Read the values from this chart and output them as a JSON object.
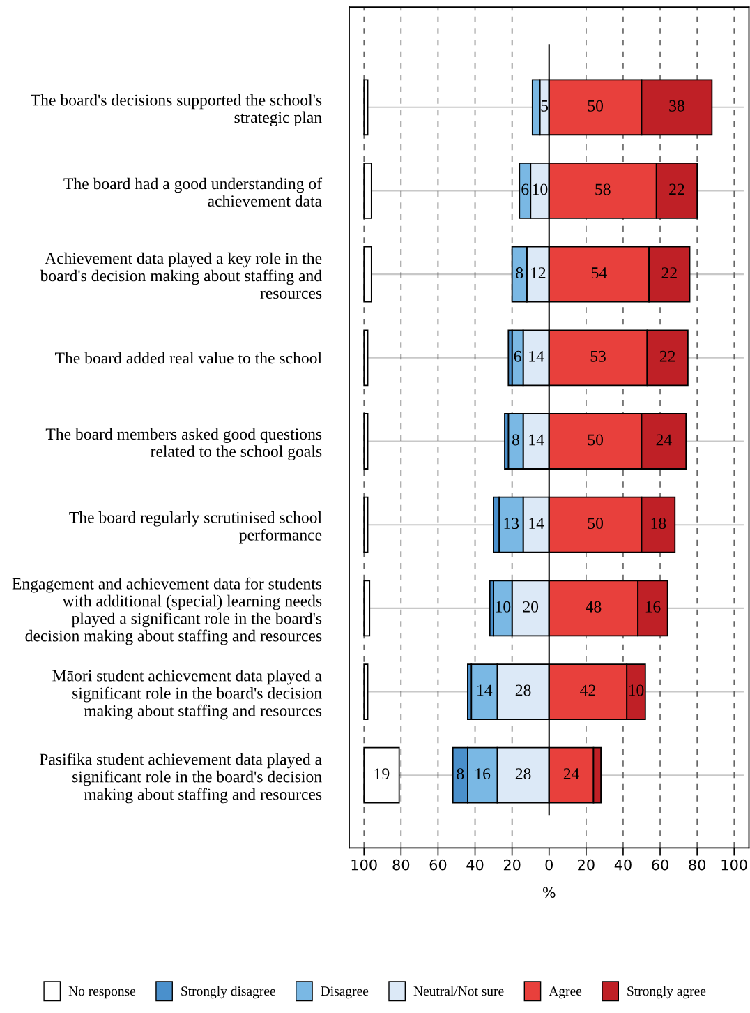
{
  "chart_data": {
    "type": "bar",
    "orientation": "horizontal",
    "categories": [
      "The board's decisions supported the school's\nstrategic plan",
      "The board had a good understanding of\nachievement data",
      "Achievement data played a key role in the\nboard's decision making about staffing and\nresources",
      "The board added real value to the school",
      "The board members asked good questions\nrelated to the school goals",
      "The board regularly scrutinised school\nperformance",
      "Engagement and achievement data for students\nwith additional (special) learning needs\nplayed a significant role in the board's\ndecision making about staffing and resources",
      "Māori student achievement data played a\nsignificant role in the board's decision\nmaking about staffing and resources",
      "Pasifika student achievement data played a\nsignificant role in the board's decision\nmaking about staffing and resources"
    ],
    "series": [
      {
        "name": "Neutral/Not sure",
        "color": "#dce9f7",
        "base": [
          -5,
          -10,
          -12,
          -14,
          -14,
          -14,
          -20,
          -28,
          -28
        ],
        "values": [
          5,
          10,
          12,
          14,
          14,
          14,
          20,
          28,
          28
        ],
        "value_labels": [
          "5",
          "10",
          "12",
          "14",
          "14",
          "14",
          "20",
          "28",
          "28"
        ]
      },
      {
        "name": "Disagree",
        "color": "#7ab8e4",
        "base": [
          -9,
          -16,
          -20,
          -20,
          -22,
          -27,
          -30,
          -42,
          -44
        ],
        "values": [
          4,
          6,
          8,
          6,
          8,
          13,
          10,
          14,
          16
        ],
        "value_labels": [
          null,
          "6",
          "8",
          "6",
          "8",
          "13",
          "10",
          "14",
          "16"
        ]
      },
      {
        "name": "Strongly disagree",
        "color": "#4a90cc",
        "base": [
          null,
          null,
          null,
          -22,
          -24,
          -30,
          -32,
          -44,
          -52
        ],
        "values": [
          null,
          null,
          null,
          2,
          2,
          3,
          2,
          2,
          8
        ],
        "value_labels": [
          null,
          null,
          null,
          null,
          null,
          null,
          null,
          null,
          "8"
        ]
      },
      {
        "name": "Agree",
        "color": "#e8403c",
        "base": [
          0,
          0,
          0,
          0,
          0,
          0,
          0,
          0,
          0
        ],
        "values": [
          50,
          58,
          54,
          53,
          50,
          50,
          48,
          42,
          24
        ],
        "value_labels": [
          "50",
          "58",
          "54",
          "53",
          "50",
          "50",
          "48",
          "42",
          "24"
        ]
      },
      {
        "name": "Strongly agree",
        "color": "#bf2026",
        "base": [
          50,
          58,
          54,
          53,
          50,
          50,
          48,
          42,
          24
        ],
        "values": [
          38,
          22,
          22,
          22,
          24,
          18,
          16,
          10,
          4
        ],
        "value_labels": [
          "38",
          "22",
          "22",
          "22",
          "24",
          "18",
          "16",
          "10",
          null
        ]
      },
      {
        "name": "No response",
        "color": "#ffffff",
        "base": [
          -100,
          -100,
          -100,
          -100,
          -100,
          -100,
          -100,
          -100,
          -100
        ],
        "values": [
          2,
          4,
          4,
          2,
          2,
          2,
          3,
          2,
          19
        ],
        "value_labels": [
          null,
          null,
          null,
          null,
          null,
          null,
          null,
          null,
          "19"
        ]
      }
    ],
    "xlim": [
      -108,
      108
    ],
    "xticks": [
      {
        "value": -100,
        "label": "100"
      },
      {
        "value": -80,
        "label": "80"
      },
      {
        "value": -60,
        "label": "60"
      },
      {
        "value": -40,
        "label": "40"
      },
      {
        "value": -20,
        "label": "20"
      },
      0,
      20,
      40,
      60,
      80,
      100
    ],
    "xlabel": "%",
    "ref_lines": [
      {
        "axis": "x",
        "value": 0,
        "color": "#000000",
        "line_style": "solid"
      }
    ],
    "grid": true,
    "legend": "bottom"
  }
}
